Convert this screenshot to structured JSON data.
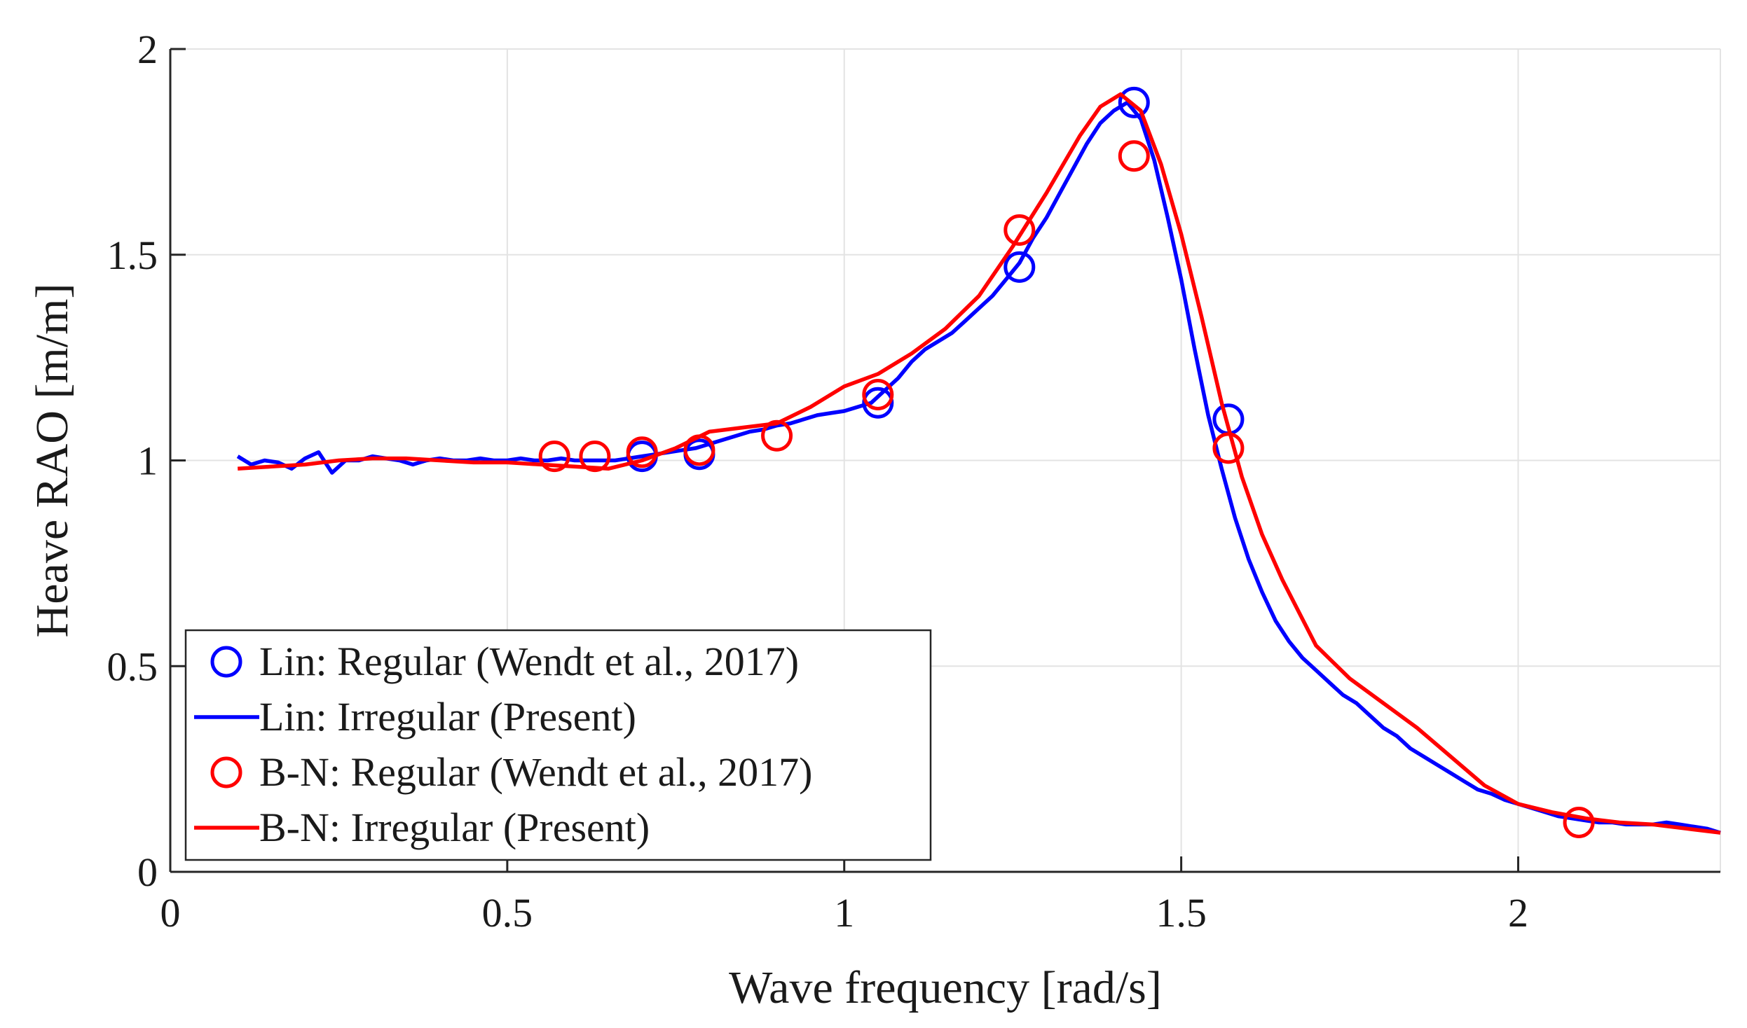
{
  "chart_data": {
    "type": "line",
    "title": "",
    "xlabel": "Wave frequency [rad/s]",
    "ylabel": "Heave RAO [m/m]",
    "xlim": [
      0,
      2.3
    ],
    "ylim": [
      0,
      2
    ],
    "xticks": [
      0,
      0.5,
      1,
      1.5,
      2
    ],
    "xtick_labels": [
      "0",
      "0.5",
      "1",
      "1.5",
      "2"
    ],
    "yticks": [
      0,
      0.5,
      1,
      1.5,
      2
    ],
    "ytick_labels": [
      "0",
      "0.5",
      "1",
      "1.5",
      "2"
    ],
    "grid": true,
    "legend_position": "bottom-left",
    "series": [
      {
        "name": "Lin:  Regular (Wendt et al., 2017)",
        "style": "markers",
        "color": "#0000ff",
        "x": [
          0.7,
          0.785,
          1.05,
          1.26,
          1.43,
          1.57
        ],
        "y": [
          1.01,
          1.015,
          1.14,
          1.47,
          1.87,
          1.1
        ]
      },
      {
        "name": "Lin:  Irregular (Present)",
        "style": "line",
        "color": "#0000ff",
        "x": [
          0.1,
          0.12,
          0.14,
          0.16,
          0.18,
          0.2,
          0.22,
          0.24,
          0.26,
          0.28,
          0.3,
          0.32,
          0.34,
          0.36,
          0.38,
          0.4,
          0.42,
          0.44,
          0.46,
          0.48,
          0.5,
          0.52,
          0.54,
          0.56,
          0.58,
          0.6,
          0.62,
          0.64,
          0.66,
          0.68,
          0.7,
          0.72,
          0.74,
          0.76,
          0.78,
          0.8,
          0.82,
          0.84,
          0.86,
          0.88,
          0.9,
          0.92,
          0.94,
          0.96,
          0.98,
          1.0,
          1.02,
          1.04,
          1.06,
          1.08,
          1.1,
          1.12,
          1.14,
          1.16,
          1.18,
          1.2,
          1.22,
          1.24,
          1.26,
          1.28,
          1.3,
          1.32,
          1.34,
          1.36,
          1.38,
          1.4,
          1.42,
          1.44,
          1.46,
          1.48,
          1.5,
          1.52,
          1.54,
          1.56,
          1.58,
          1.6,
          1.62,
          1.64,
          1.66,
          1.68,
          1.7,
          1.72,
          1.74,
          1.76,
          1.78,
          1.8,
          1.82,
          1.84,
          1.86,
          1.88,
          1.9,
          1.92,
          1.94,
          1.96,
          1.98,
          2.0,
          2.02,
          2.04,
          2.06,
          2.08,
          2.1,
          2.12,
          2.14,
          2.16,
          2.18,
          2.2,
          2.22,
          2.24,
          2.26,
          2.28,
          2.3
        ],
        "y": [
          1.01,
          0.99,
          1.0,
          0.995,
          0.98,
          1.005,
          1.02,
          0.97,
          1.0,
          1.0,
          1.01,
          1.005,
          1.0,
          0.99,
          1.0,
          1.005,
          1.0,
          1.0,
          1.005,
          1.0,
          1.0,
          1.005,
          1.0,
          1.0,
          1.005,
          1.0,
          1.0,
          1.0,
          1.0,
          1.005,
          1.01,
          1.015,
          1.02,
          1.025,
          1.03,
          1.04,
          1.05,
          1.06,
          1.07,
          1.075,
          1.085,
          1.09,
          1.1,
          1.11,
          1.115,
          1.12,
          1.13,
          1.14,
          1.17,
          1.2,
          1.24,
          1.27,
          1.29,
          1.31,
          1.34,
          1.37,
          1.4,
          1.44,
          1.48,
          1.54,
          1.59,
          1.65,
          1.71,
          1.77,
          1.82,
          1.85,
          1.87,
          1.83,
          1.73,
          1.59,
          1.44,
          1.27,
          1.11,
          0.98,
          0.86,
          0.76,
          0.68,
          0.61,
          0.56,
          0.52,
          0.49,
          0.46,
          0.43,
          0.41,
          0.38,
          0.35,
          0.33,
          0.3,
          0.28,
          0.26,
          0.24,
          0.22,
          0.2,
          0.19,
          0.175,
          0.165,
          0.155,
          0.145,
          0.135,
          0.13,
          0.125,
          0.12,
          0.12,
          0.115,
          0.115,
          0.115,
          0.12,
          0.115,
          0.11,
          0.105,
          0.095
        ]
      },
      {
        "name": "B-N: Regular (Wendt et al., 2017)",
        "style": "markers",
        "color": "#ff0000",
        "x": [
          0.57,
          0.63,
          0.7,
          0.785,
          0.9,
          1.05,
          1.26,
          1.43,
          1.57,
          2.09
        ],
        "y": [
          1.01,
          1.01,
          1.02,
          1.025,
          1.06,
          1.16,
          1.56,
          1.74,
          1.03,
          0.12
        ]
      },
      {
        "name": "B-N: Irregular (Present)",
        "style": "line",
        "color": "#ff0000",
        "x": [
          0.1,
          0.15,
          0.2,
          0.25,
          0.3,
          0.35,
          0.4,
          0.45,
          0.5,
          0.55,
          0.6,
          0.65,
          0.7,
          0.75,
          0.8,
          0.85,
          0.9,
          0.95,
          1.0,
          1.05,
          1.1,
          1.15,
          1.2,
          1.25,
          1.3,
          1.35,
          1.38,
          1.41,
          1.44,
          1.47,
          1.5,
          1.53,
          1.56,
          1.59,
          1.62,
          1.65,
          1.7,
          1.75,
          1.8,
          1.85,
          1.9,
          1.95,
          2.0,
          2.05,
          2.1,
          2.15,
          2.2,
          2.25,
          2.3
        ],
        "y": [
          0.98,
          0.985,
          0.99,
          1.0,
          1.005,
          1.005,
          1.0,
          0.995,
          0.995,
          0.99,
          0.985,
          0.98,
          1.0,
          1.03,
          1.07,
          1.08,
          1.09,
          1.13,
          1.18,
          1.21,
          1.26,
          1.32,
          1.4,
          1.52,
          1.65,
          1.79,
          1.86,
          1.89,
          1.85,
          1.72,
          1.55,
          1.35,
          1.14,
          0.96,
          0.82,
          0.71,
          0.55,
          0.47,
          0.41,
          0.35,
          0.28,
          0.21,
          0.165,
          0.145,
          0.13,
          0.12,
          0.115,
          0.105,
          0.095
        ]
      }
    ]
  }
}
